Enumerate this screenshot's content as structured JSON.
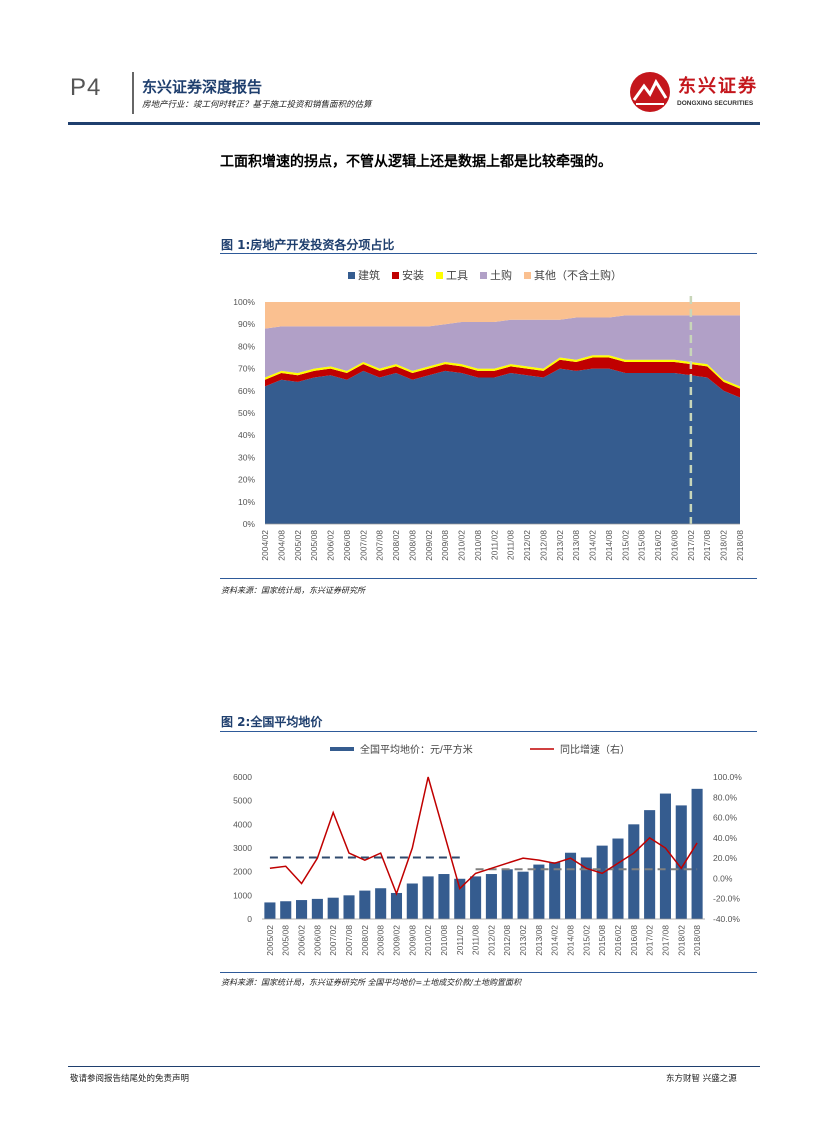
{
  "header": {
    "page_number": "P4",
    "title": "东兴证券深度报告",
    "subtitle": "房地产行业：竣工何时转正？基于施工投资和销售面积的估算",
    "logo_name": "东兴证券",
    "logo_en": "DONGXING SECURITIES"
  },
  "body_text": "工面积增速的拐点，不管从逻辑上还是数据上都是比较牵强的。",
  "figure1": {
    "title": "图 1:房地产开发投资各分项占比",
    "source": "资料来源：国家统计局，东兴证券研究所",
    "chart_data": {
      "type": "area",
      "stacked": true,
      "legend_position": "top",
      "categories": [
        "2004/02",
        "2004/08",
        "2005/02",
        "2005/08",
        "2006/02",
        "2006/08",
        "2007/02",
        "2007/08",
        "2008/02",
        "2008/08",
        "2009/02",
        "2009/08",
        "2010/02",
        "2010/08",
        "2011/02",
        "2011/08",
        "2012/02",
        "2012/08",
        "2013/02",
        "2013/08",
        "2014/02",
        "2014/08",
        "2015/02",
        "2015/08",
        "2016/02",
        "2016/08",
        "2017/02",
        "2017/08",
        "2018/02",
        "2018/08"
      ],
      "ylim": [
        0,
        100
      ],
      "yticks": [
        "0%",
        "10%",
        "20%",
        "30%",
        "40%",
        "50%",
        "60%",
        "70%",
        "80%",
        "90%",
        "100%"
      ],
      "marker_line_at": "2017/02",
      "colors": {
        "建筑": "#355c8f",
        "安装": "#c00000",
        "工具": "#ffff00",
        "土购": "#b1a0c7",
        "其他（不含土购）": "#fac090",
        "marker": "#c8d6b9"
      },
      "series": [
        {
          "name": "建筑",
          "values": [
            62,
            65,
            64,
            66,
            67,
            65,
            69,
            66,
            68,
            65,
            67,
            69,
            68,
            66,
            66,
            68,
            67,
            66,
            70,
            69,
            70,
            70,
            68,
            68,
            68,
            68,
            67,
            66,
            60,
            57
          ]
        },
        {
          "name": "安装",
          "values": [
            3,
            3,
            3,
            3,
            3,
            3,
            3,
            3,
            3,
            3,
            3,
            3,
            3,
            3,
            3,
            3,
            3,
            3,
            4,
            4,
            5,
            5,
            5,
            5,
            5,
            5,
            5,
            5,
            4,
            4
          ]
        },
        {
          "name": "工具",
          "values": [
            1,
            1,
            1,
            1,
            1,
            1,
            1,
            1,
            1,
            1,
            1,
            1,
            1,
            1,
            1,
            1,
            1,
            1,
            1,
            1,
            1,
            1,
            1,
            1,
            1,
            1,
            1,
            1,
            1,
            1
          ]
        },
        {
          "name": "土购",
          "values": [
            22,
            20,
            21,
            19,
            18,
            20,
            16,
            19,
            17,
            20,
            18,
            17,
            19,
            21,
            21,
            20,
            21,
            22,
            17,
            19,
            17,
            17,
            20,
            20,
            20,
            20,
            21,
            22,
            29,
            32
          ]
        },
        {
          "name": "其他（不含土购）",
          "values": [
            12,
            11,
            11,
            11,
            11,
            11,
            11,
            11,
            11,
            11,
            11,
            10,
            9,
            9,
            9,
            8,
            8,
            8,
            8,
            7,
            7,
            7,
            6,
            6,
            6,
            6,
            6,
            6,
            6,
            6
          ]
        }
      ]
    }
  },
  "figure2": {
    "title": "图 2:全国平均地价",
    "source": "资料来源：国家统计局，东兴证券研究所   全国平均地价=土地成交价款/土地购置面积",
    "chart_data": {
      "type": "bar",
      "legend_position": "top",
      "categories": [
        "2005/02",
        "2005/08",
        "2006/02",
        "2006/08",
        "2007/02",
        "2007/08",
        "2008/02",
        "2008/08",
        "2009/02",
        "2009/08",
        "2010/02",
        "2010/08",
        "2011/02",
        "2011/08",
        "2012/02",
        "2012/08",
        "2013/02",
        "2013/08",
        "2014/02",
        "2014/08",
        "2015/02",
        "2015/08",
        "2016/02",
        "2016/08",
        "2017/02",
        "2017/08",
        "2018/02",
        "2018/08"
      ],
      "ylim_left": [
        0,
        6000
      ],
      "yticks_left": [
        "0",
        "1000",
        "2000",
        "3000",
        "4000",
        "5000",
        "6000"
      ],
      "ylim_right": [
        -40,
        100
      ],
      "yticks_right": [
        "-40.0%",
        "-20.0%",
        "0.0%",
        "20.0%",
        "40.0%",
        "60.0%",
        "80.0%",
        "100.0%"
      ],
      "colors": {
        "bar": "#355c8f",
        "line": "#c00000",
        "dash_blue": "#2f4a6d",
        "dash_gray": "#808080"
      },
      "series": [
        {
          "name": "全国平均地价：元/平方米",
          "type": "bar",
          "axis": "left",
          "values": [
            700,
            750,
            800,
            850,
            900,
            1000,
            1200,
            1300,
            1100,
            1500,
            1800,
            1900,
            1700,
            1800,
            1900,
            2100,
            2000,
            2300,
            2400,
            2800,
            2600,
            3100,
            3400,
            4000,
            4600,
            5300,
            4800,
            5500
          ]
        },
        {
          "name": "同比增速（右）",
          "type": "line",
          "axis": "right",
          "values": [
            10,
            12,
            -5,
            20,
            65,
            25,
            18,
            25,
            -15,
            30,
            100,
            45,
            -10,
            5,
            10,
            15,
            20,
            18,
            15,
            20,
            10,
            5,
            15,
            25,
            40,
            30,
            10,
            35
          ]
        }
      ],
      "reference_lines": [
        {
          "axis": "left",
          "value": 2600,
          "from": "2005/02",
          "to": "2011/02",
          "style": "dashed",
          "color": "dash_blue"
        },
        {
          "axis": "left",
          "value": 2100,
          "from": "2011/08",
          "to": "2018/08",
          "style": "dashed",
          "color": "dash_gray"
        }
      ]
    }
  },
  "footer": {
    "left": "敬请参阅报告结尾处的免责声明",
    "right": "东方财智 兴盛之源"
  }
}
